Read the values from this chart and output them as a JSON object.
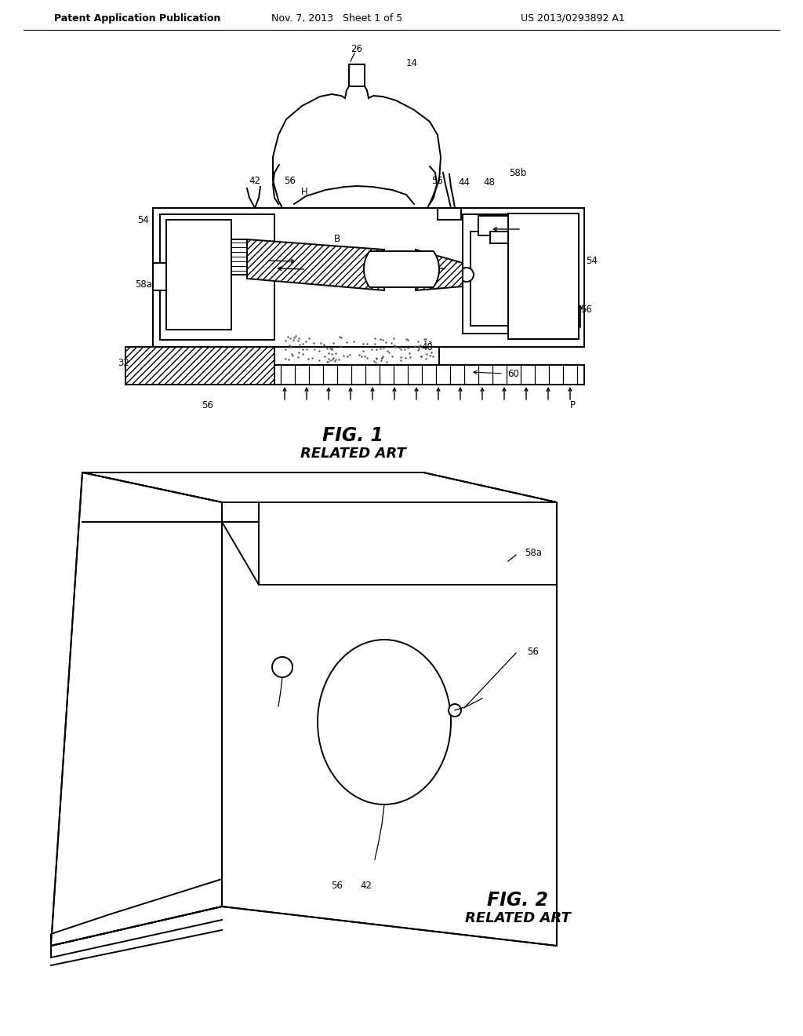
{
  "bg_color": "#ffffff",
  "header_left": "Patent Application Publication",
  "header_mid": "Nov. 7, 2013   Sheet 1 of 5",
  "header_right": "US 2013/0293892 A1",
  "fig1_title": "FIG. 1",
  "fig1_subtitle": "RELATED ART",
  "fig2_title": "FIG. 2",
  "fig2_subtitle": "RELATED ART",
  "line_color": "#000000"
}
